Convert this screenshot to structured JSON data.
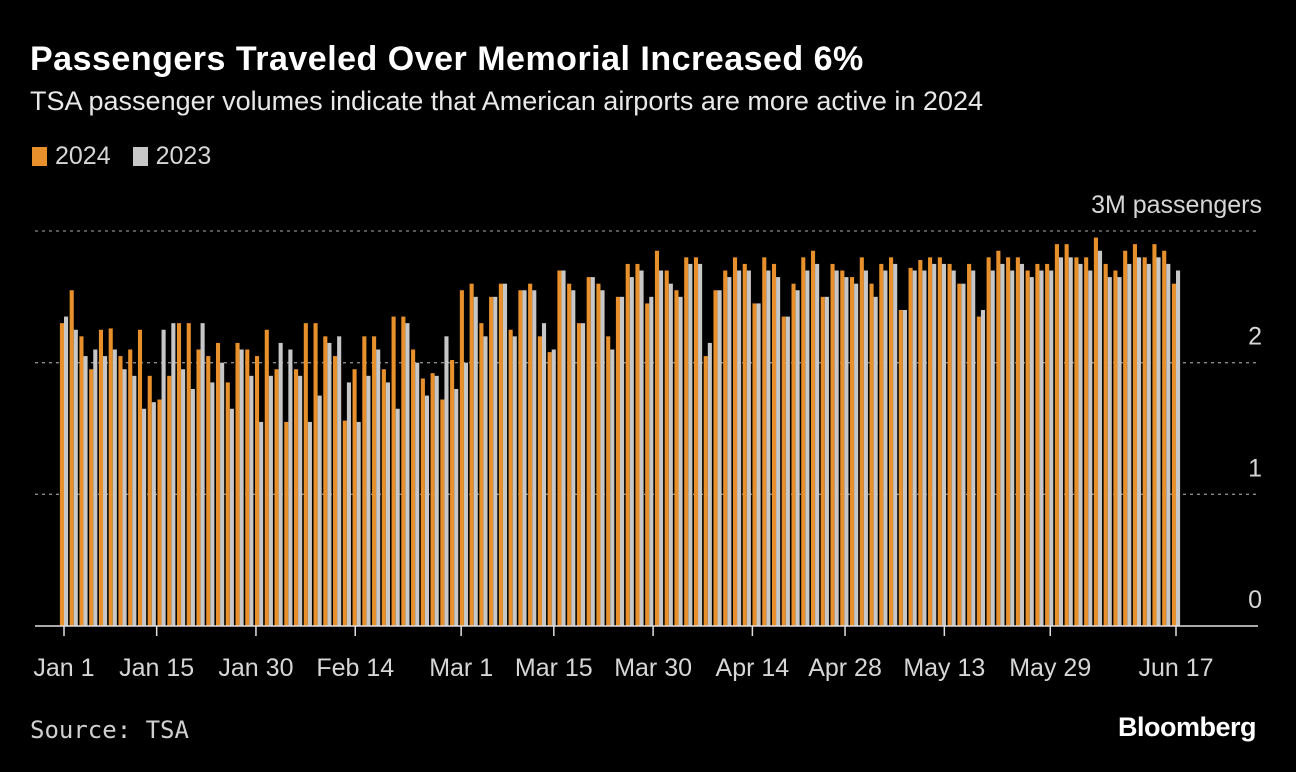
{
  "header": {
    "title": "Passengers Traveled Over Memorial Increased 6%",
    "subtitle": "TSA passenger volumes indicate that American airports are more active in 2024"
  },
  "legend": [
    {
      "label": "2024",
      "color": "#e8912c"
    },
    {
      "label": "2023",
      "color": "#c7c7c7"
    }
  ],
  "footer": {
    "source": "Source: TSA",
    "brand": "Bloomberg"
  },
  "chart_data": {
    "type": "bar",
    "title": "Passengers Traveled Over Memorial Increased 6%",
    "ylabel": "3M passengers",
    "ylim": [
      0,
      3
    ],
    "yticks": [
      {
        "value": 0,
        "label": "0"
      },
      {
        "value": 1,
        "label": "1"
      },
      {
        "value": 2,
        "label": "2"
      },
      {
        "value": 3,
        "label": "3M passengers"
      }
    ],
    "xticks": [
      {
        "day": 1,
        "label": "Jan 1"
      },
      {
        "day": 15,
        "label": "Jan 15"
      },
      {
        "day": 30,
        "label": "Jan 30"
      },
      {
        "day": 45,
        "label": "Feb 14"
      },
      {
        "day": 61,
        "label": "Mar 1"
      },
      {
        "day": 75,
        "label": "Mar 15"
      },
      {
        "day": 90,
        "label": "Mar 30"
      },
      {
        "day": 105,
        "label": "Apr 14"
      },
      {
        "day": 119,
        "label": "Apr 28"
      },
      {
        "day": 134,
        "label": "May 13"
      },
      {
        "day": 150,
        "label": "May 29"
      },
      {
        "day": 169,
        "label": "Jun 17"
      }
    ],
    "series": [
      {
        "name": "2024",
        "color": "#e8912c",
        "values": [
          2.3,
          2.55,
          2.2,
          1.95,
          2.25,
          2.26,
          2.05,
          2.1,
          2.25,
          1.9,
          1.72,
          1.9,
          2.3,
          2.3,
          2.1,
          2.05,
          2.15,
          1.85,
          2.15,
          2.1,
          2.05,
          2.25,
          1.95,
          1.55,
          1.95,
          2.3,
          2.3,
          2.2,
          2.05,
          1.56,
          1.95,
          2.2,
          2.2,
          1.95,
          2.35,
          2.35,
          2.1,
          1.88,
          1.92,
          1.72,
          2.02,
          2.55,
          2.6,
          2.3,
          2.5,
          2.6,
          2.25,
          2.55,
          2.6,
          2.2,
          2.08,
          2.7,
          2.6,
          2.3,
          2.65,
          2.6,
          2.2,
          2.5,
          2.75,
          2.75,
          2.45,
          2.85,
          2.7,
          2.55,
          2.8,
          2.8,
          2.05,
          2.55,
          2.7,
          2.8,
          2.75,
          2.45,
          2.8,
          2.75,
          2.35,
          2.6,
          2.8,
          2.85,
          2.5,
          2.75,
          2.7,
          2.65,
          2.8,
          2.6,
          2.75,
          2.8,
          2.4,
          2.72,
          2.78,
          2.8,
          2.8,
          2.75,
          2.6,
          2.75,
          2.35,
          2.8,
          2.85,
          2.8,
          2.8,
          2.7,
          2.75,
          2.75,
          2.9,
          2.9,
          2.8,
          2.8,
          2.95,
          2.75,
          2.7,
          2.85,
          2.9,
          2.8,
          2.9,
          2.85,
          2.6
        ],
        "note": "values interleaved approximation"
      },
      {
        "name": "2023",
        "color": "#c7c7c7",
        "values": [
          2.35,
          2.25,
          2.05,
          2.1,
          2.05,
          2.1,
          1.95,
          1.9,
          1.65,
          1.7,
          2.25,
          2.3,
          1.95,
          1.8,
          2.3,
          1.85,
          2.0,
          1.65,
          2.1,
          1.9,
          1.55,
          1.9,
          2.15,
          2.1,
          1.9,
          1.55,
          1.75,
          2.15,
          2.2,
          1.85,
          1.55,
          1.9,
          2.1,
          1.85,
          1.65,
          2.3,
          2.0,
          1.75,
          1.9,
          2.2,
          1.8,
          2.0,
          2.5,
          2.2,
          2.5,
          2.6,
          2.2,
          2.55,
          2.55,
          2.3,
          2.1,
          2.7,
          2.55,
          2.3,
          2.65,
          2.55,
          2.1,
          2.5,
          2.65,
          2.7,
          2.5,
          2.7,
          2.6,
          2.5,
          2.75,
          2.75,
          2.15,
          2.55,
          2.65,
          2.7,
          2.7,
          2.45,
          2.7,
          2.65,
          2.35,
          2.55,
          2.7,
          2.75,
          2.5,
          2.7,
          2.65,
          2.6,
          2.7,
          2.5,
          2.7,
          2.75,
          2.4,
          2.7,
          2.7,
          2.75,
          2.75,
          2.7,
          2.6,
          2.7,
          2.4,
          2.7,
          2.75,
          2.7,
          2.75,
          2.65,
          2.7,
          2.7,
          2.8,
          2.8,
          2.75,
          2.7,
          2.85,
          2.65,
          2.65,
          2.75,
          2.8,
          2.75,
          2.8,
          2.75,
          2.7
        ]
      }
    ]
  }
}
